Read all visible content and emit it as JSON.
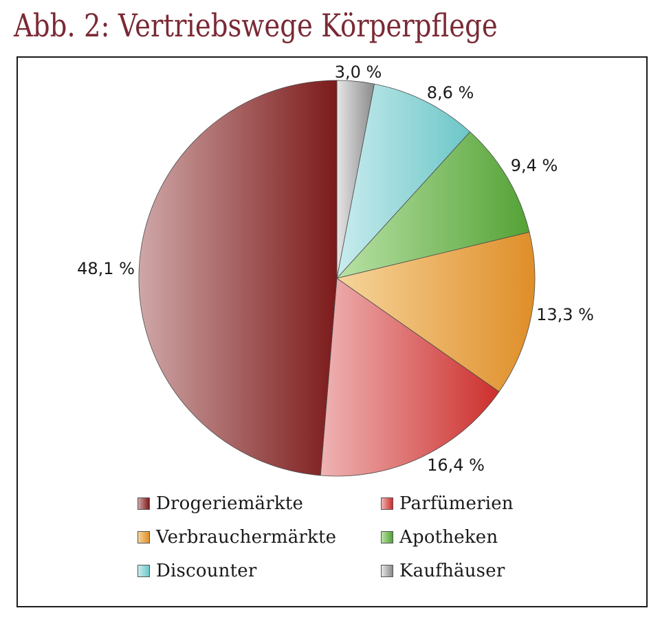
{
  "title": "Abb. 2: Vertriebswege Körperpflege",
  "chart_data": {
    "type": "pie",
    "title": "Abb. 2: Vertriebswege Körperpflege",
    "start_angle_deg": 0,
    "direction": "clockwise",
    "slices": [
      {
        "name": "Kaufhäuser",
        "value": 3.0,
        "label": "3,0 %",
        "color": "#8a8a8a",
        "color_light": "#e6e6e6"
      },
      {
        "name": "Discounter",
        "value": 8.6,
        "label": "8,6 %",
        "color": "#6cc6c8",
        "color_light": "#c9ecee"
      },
      {
        "name": "Apotheken",
        "value": 9.4,
        "label": "9,4 %",
        "color": "#54a236",
        "color_light": "#b9e2a6"
      },
      {
        "name": "Verbrauchermärkte",
        "value": 13.3,
        "label": "13,3 %",
        "color": "#df8e28",
        "color_light": "#f6d59c"
      },
      {
        "name": "Parfümerien",
        "value": 16.4,
        "label": "16,4 %",
        "color": "#cc2f2c",
        "color_light": "#efb3b4"
      },
      {
        "name": "Drogeriemärkte",
        "value": 48.1,
        "label": "48,1 %",
        "color": "#7c1a1a",
        "color_light": "#cfa7a7"
      }
    ],
    "legend": {
      "placement": "bottom",
      "columns": 2,
      "entries": [
        "Drogeriemärkte",
        "Parfümerien",
        "Verbrauchermärkte",
        "Apotheken",
        "Discounter",
        "Kaufhäuser"
      ]
    }
  }
}
